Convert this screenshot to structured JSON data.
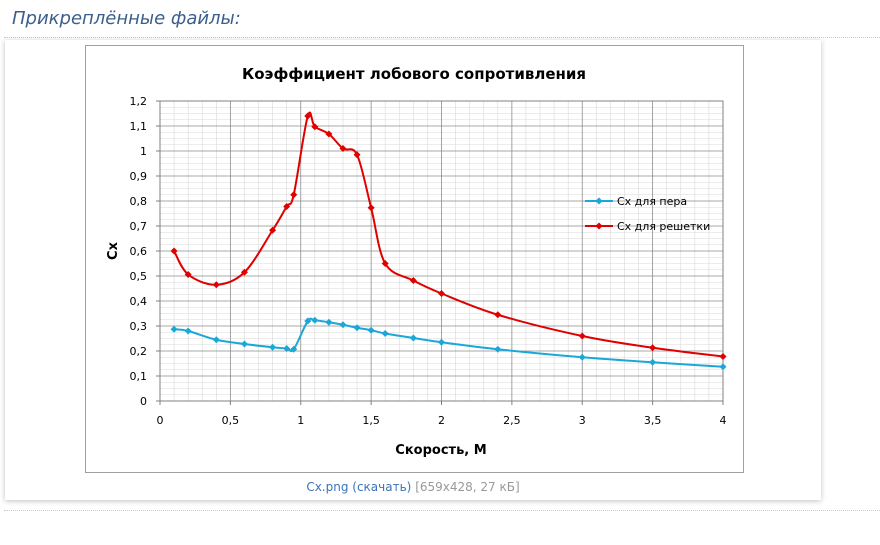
{
  "section": {
    "title": "Прикреплённые файлы:"
  },
  "attachment": {
    "link_text": "Cx.png (скачать)",
    "meta_text": "[659x428, 27 кБ]"
  },
  "colors": {
    "series_1": "#1ba7d8",
    "series_2": "#e00000",
    "link": "#3a74b8",
    "section_title": "#3b5f8a"
  },
  "chart_data": {
    "type": "line",
    "title": "Коэффициент лобового сопротивления",
    "xlabel": "Скорость, М",
    "ylabel": "Сх",
    "xlim": [
      0,
      4
    ],
    "ylim": [
      0,
      1.2
    ],
    "x_ticks": [
      "0",
      "0,5",
      "1",
      "1,5",
      "2",
      "2,5",
      "3",
      "3,5",
      "4"
    ],
    "y_ticks": [
      "0",
      "0,1",
      "0,2",
      "0,3",
      "0,4",
      "0,5",
      "0,6",
      "0,7",
      "0,8",
      "0,9",
      "1",
      "1,1",
      "1,2"
    ],
    "grid": true,
    "legend_position": "right",
    "series": [
      {
        "name": "Сх для пера",
        "color": "#1ba7d8",
        "points": [
          [
            0.1,
            0.287
          ],
          [
            0.2,
            0.28
          ],
          [
            0.4,
            0.245
          ],
          [
            0.6,
            0.228
          ],
          [
            0.8,
            0.215
          ],
          [
            0.9,
            0.21
          ],
          [
            0.95,
            0.207
          ],
          [
            1.05,
            0.32
          ],
          [
            1.1,
            0.323
          ],
          [
            1.2,
            0.315
          ],
          [
            1.3,
            0.305
          ],
          [
            1.4,
            0.293
          ],
          [
            1.5,
            0.283
          ],
          [
            1.6,
            0.27
          ],
          [
            1.8,
            0.252
          ],
          [
            2.0,
            0.235
          ],
          [
            2.4,
            0.207
          ],
          [
            3.0,
            0.175
          ],
          [
            3.5,
            0.155
          ],
          [
            4.0,
            0.137
          ]
        ]
      },
      {
        "name": "Сх для решетки",
        "color": "#e00000",
        "points": [
          [
            0.1,
            0.6
          ],
          [
            0.2,
            0.506
          ],
          [
            0.4,
            0.465
          ],
          [
            0.6,
            0.515
          ],
          [
            0.8,
            0.683
          ],
          [
            0.9,
            0.778
          ],
          [
            0.95,
            0.825
          ],
          [
            1.05,
            1.14
          ],
          [
            1.1,
            1.097
          ],
          [
            1.2,
            1.068
          ],
          [
            1.3,
            1.01
          ],
          [
            1.4,
            0.985
          ],
          [
            1.5,
            0.773
          ],
          [
            1.6,
            0.55
          ],
          [
            1.8,
            0.482
          ],
          [
            2.0,
            0.43
          ],
          [
            2.4,
            0.345
          ],
          [
            3.0,
            0.26
          ],
          [
            3.5,
            0.213
          ],
          [
            4.0,
            0.178
          ]
        ]
      }
    ]
  }
}
